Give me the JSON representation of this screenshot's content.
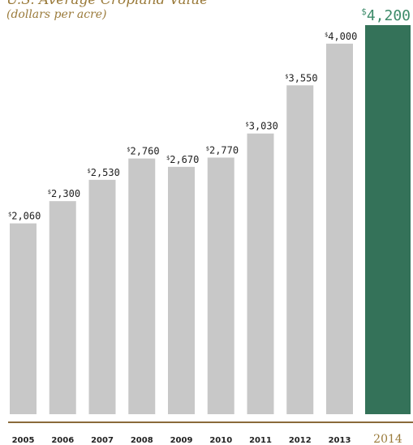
{
  "chart_data": {
    "type": "bar",
    "title": "U.S. Average Cropland Value",
    "subtitle": "(dollars per acre)",
    "categories": [
      "2005",
      "2006",
      "2007",
      "2008",
      "2009",
      "2010",
      "2011",
      "2012",
      "2013",
      "2014"
    ],
    "values": [
      2060,
      2300,
      2530,
      2760,
      2670,
      2770,
      3030,
      3550,
      4000,
      4200
    ],
    "value_labels": [
      "2,060",
      "2,300",
      "2,530",
      "2,760",
      "2,670",
      "2,770",
      "3,030",
      "3,550",
      "4,000",
      "4,200"
    ],
    "currency_symbol": "$",
    "highlight_category": "2014",
    "ylim": [
      0,
      4200
    ],
    "grid": false,
    "colors": {
      "bar": "#c8c8c8",
      "highlight_bar": "#347259",
      "highlight_value": "#3d8b6a",
      "title": "#9a7a3a",
      "axis_line": "#8a6a3a"
    }
  }
}
